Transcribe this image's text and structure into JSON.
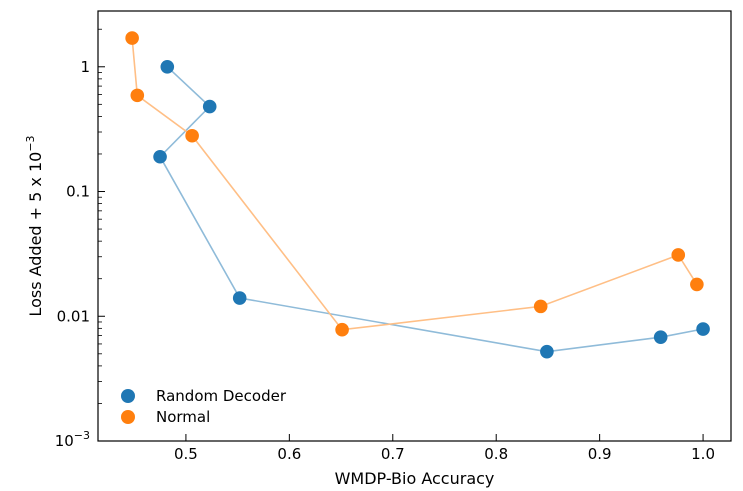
{
  "chart_data": {
    "type": "scatter",
    "xlabel": "WMDP-Bio Accuracy",
    "ylabel": "Loss Added + 5 x 10",
    "ylabel_exponent": "−3",
    "y_scale": "log",
    "xlim": [
      0.415,
      1.027
    ],
    "ylim": [
      0.001,
      2.8
    ],
    "x_ticks": [
      {
        "value": 0.5,
        "label": "0.5"
      },
      {
        "value": 0.6,
        "label": "0.6"
      },
      {
        "value": 0.7,
        "label": "0.7"
      },
      {
        "value": 0.8,
        "label": "0.8"
      },
      {
        "value": 0.9,
        "label": "0.9"
      },
      {
        "value": 1.0,
        "label": "1.0"
      }
    ],
    "y_ticks": [
      {
        "value": 0.001,
        "label": "10",
        "exponent": "−3"
      },
      {
        "value": 0.01,
        "label": "0.01"
      },
      {
        "value": 0.1,
        "label": "0.1"
      },
      {
        "value": 1,
        "label": "1"
      }
    ],
    "grid": false,
    "legend_position": "lower-left",
    "series": [
      {
        "name": "Random Decoder",
        "color": "#1f77b4",
        "line_color": "#8fbbd9",
        "x": [
          0.482,
          0.523,
          0.475,
          0.552,
          0.849,
          0.959,
          1.0
        ],
        "y": [
          1.0,
          0.48,
          0.19,
          0.014,
          0.0052,
          0.0068,
          0.0079
        ]
      },
      {
        "name": "Normal",
        "color": "#ff7f0e",
        "line_color": "#ffbf86",
        "x": [
          0.448,
          0.453,
          0.506,
          0.651,
          0.843,
          0.976,
          0.994
        ],
        "y": [
          1.7,
          0.59,
          0.28,
          0.0078,
          0.012,
          0.031,
          0.018
        ]
      }
    ]
  }
}
